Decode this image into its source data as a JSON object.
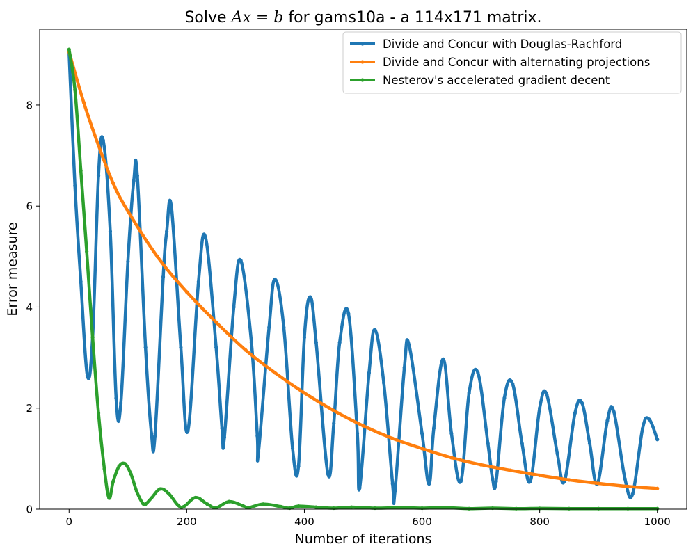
{
  "chart_data": {
    "type": "line",
    "title_prefix": "Solve ",
    "title_math_a": "Ax",
    "title_math_eq": " = ",
    "title_math_b": "b",
    "title_suffix": " for gams10a - a 114x171 matrix.",
    "xlabel": "Number of iterations",
    "ylabel": "Error measure",
    "xlim": [
      -50,
      1050
    ],
    "ylim": [
      0,
      9.5
    ],
    "xticks": [
      0,
      200,
      400,
      600,
      800,
      1000
    ],
    "yticks": [
      0,
      2,
      4,
      6,
      8
    ],
    "grid": false,
    "legend_position": "top-right",
    "series": [
      {
        "name": "Divide and Concur with Douglas-Rachford",
        "color": "#1f77b4",
        "x": [
          0,
          10,
          20,
          31,
          40,
          50,
          58,
          70,
          80,
          88,
          100,
          110,
          116,
          130,
          140,
          146,
          160,
          166,
          174,
          190,
          202,
          220,
          232,
          250,
          260,
          264,
          280,
          292,
          310,
          320,
          322,
          340,
          350,
          365,
          380,
          390,
          400,
          410,
          420,
          440,
          450,
          460,
          475,
          490,
          494,
          510,
          520,
          535,
          550,
          554,
          570,
          578,
          600,
          612,
          620,
          636,
          650,
          666,
          680,
          695,
          712,
          720,
          726,
          740,
          754,
          770,
          784,
          800,
          812,
          830,
          842,
          860,
          872,
          885,
          898,
          915,
          926,
          945,
          958,
          975,
          986,
          1000
        ],
        "y": [
          9.05,
          6.4,
          4.5,
          2.65,
          3.4,
          6.6,
          7.3,
          5.5,
          2.2,
          2.1,
          4.9,
          6.5,
          6.6,
          3.2,
          1.5,
          1.45,
          4.6,
          5.5,
          5.98,
          3.2,
          1.55,
          4.5,
          5.38,
          3.2,
          1.6,
          1.42,
          4.0,
          4.92,
          3.3,
          1.45,
          1.13,
          3.6,
          4.55,
          3.6,
          1.2,
          0.85,
          3.4,
          4.2,
          3.3,
          0.7,
          1.7,
          3.3,
          3.87,
          1.5,
          0.42,
          2.7,
          3.55,
          2.5,
          0.5,
          0.35,
          2.8,
          3.25,
          1.5,
          0.5,
          1.6,
          2.97,
          1.5,
          0.55,
          2.3,
          2.7,
          1.3,
          0.6,
          0.55,
          2.2,
          2.48,
          1.3,
          0.55,
          2.0,
          2.27,
          1.1,
          0.55,
          1.9,
          2.1,
          1.3,
          0.5,
          1.75,
          1.93,
          0.6,
          0.3,
          1.6,
          1.78,
          1.38
        ]
      },
      {
        "name": "Divide and Concur with alternating projections",
        "color": "#ff7f0e",
        "x": [
          0,
          25,
          50,
          75,
          100,
          150,
          200,
          250,
          300,
          350,
          400,
          450,
          500,
          550,
          600,
          650,
          700,
          750,
          800,
          850,
          900,
          950,
          1000
        ],
        "y": [
          9.05,
          8.05,
          7.2,
          6.45,
          5.9,
          5.0,
          4.3,
          3.7,
          3.15,
          2.7,
          2.3,
          1.95,
          1.65,
          1.4,
          1.2,
          1.02,
          0.88,
          0.77,
          0.67,
          0.58,
          0.51,
          0.45,
          0.41
        ]
      },
      {
        "name": "Nesterov's accelerated gradient decent",
        "color": "#2ca02c",
        "x": [
          0,
          10,
          20,
          30,
          40,
          50,
          60,
          68,
          75,
          85,
          95,
          105,
          115,
          125,
          130,
          140,
          155,
          170,
          185,
          195,
          215,
          235,
          250,
          272,
          295,
          305,
          330,
          360,
          375,
          390,
          420,
          450,
          480,
          520,
          560,
          600,
          640,
          680,
          720,
          760,
          800,
          850,
          900,
          950,
          1000
        ],
        "y": [
          9.1,
          8.3,
          6.7,
          5.1,
          3.4,
          1.9,
          0.8,
          0.22,
          0.55,
          0.85,
          0.9,
          0.7,
          0.35,
          0.12,
          0.1,
          0.22,
          0.4,
          0.3,
          0.08,
          0.05,
          0.23,
          0.1,
          0.03,
          0.15,
          0.07,
          0.03,
          0.1,
          0.05,
          0.02,
          0.06,
          0.04,
          0.02,
          0.04,
          0.02,
          0.03,
          0.02,
          0.03,
          0.01,
          0.02,
          0.01,
          0.015,
          0.01,
          0.01,
          0.01,
          0.01
        ]
      }
    ]
  }
}
